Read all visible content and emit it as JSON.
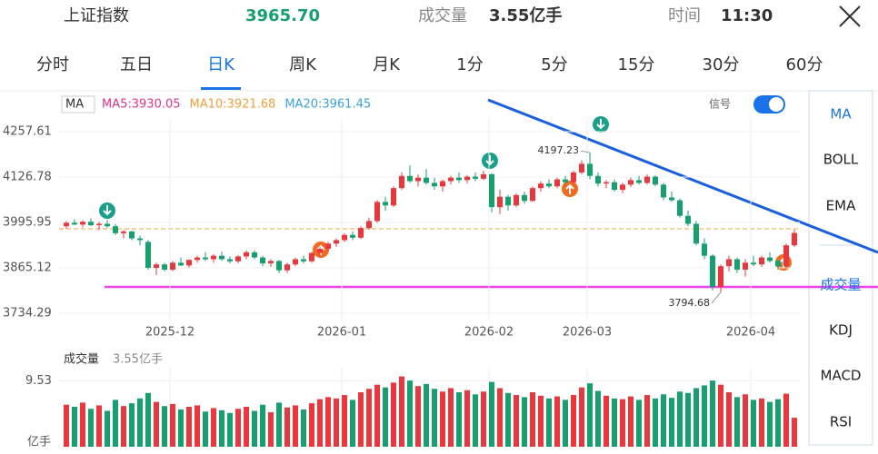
{
  "header": {
    "name": "上证指数",
    "price": "3965.70",
    "volume_label": "成交量",
    "volume": "3.55亿手",
    "time_label": "时间",
    "time": "11:30"
  },
  "tabs": [
    "分时",
    "五日",
    "日K",
    "周K",
    "月K",
    "1分",
    "5分",
    "15分",
    "30分",
    "60分"
  ],
  "active_tab": 2,
  "legend": {
    "label": "MA",
    "items": [
      {
        "text": "MA5:3930.05",
        "color": "#e0358f"
      },
      {
        "text": "MA10:3921.68",
        "color": "#f0a040"
      },
      {
        "text": "MA20:3961.45",
        "color": "#3aa0e0"
      }
    ],
    "signal": "信号"
  },
  "side_menu": {
    "items": [
      "MA",
      "BOLL",
      "EMA",
      "成交量",
      "KDJ",
      "MACD",
      "RSI"
    ],
    "active": [
      0,
      3
    ]
  },
  "volume_panel": {
    "title": "成交量",
    "value": "3.55亿手",
    "unit": "亿手"
  },
  "chart_data": {
    "type": "candlestick",
    "up_color": "#e8383d",
    "down_color": "#17a06e",
    "ylim": [
      3734.29,
      4257.61
    ],
    "yticks": [
      4257.61,
      4126.78,
      3995.95,
      3865.12,
      3734.29
    ],
    "xticks": [
      {
        "value": 13,
        "label": "2025-12"
      },
      {
        "value": 34,
        "label": "2026-01"
      },
      {
        "value": 52,
        "label": "2026-02"
      },
      {
        "value": 64,
        "label": "2026-03"
      },
      {
        "value": 84,
        "label": "2026-04"
      }
    ],
    "annotations": [
      {
        "text": "4197.23",
        "index": 64
      },
      {
        "text": "3794.68",
        "index": 80
      }
    ],
    "candles": [
      [
        3985,
        4000,
        3978,
        3995
      ],
      [
        3995,
        4005,
        3988,
        3990
      ],
      [
        3990,
        4002,
        3982,
        3998
      ],
      [
        3998,
        4008,
        3985,
        3988
      ],
      [
        3988,
        3998,
        3975,
        3992
      ],
      [
        3992,
        4003,
        3980,
        3985
      ],
      [
        3985,
        3992,
        3960,
        3965
      ],
      [
        3965,
        3975,
        3950,
        3970
      ],
      [
        3970,
        3972,
        3945,
        3950
      ],
      [
        3950,
        3958,
        3930,
        3945
      ],
      [
        3940,
        3945,
        3860,
        3865
      ],
      [
        3865,
        3880,
        3845,
        3875
      ],
      [
        3875,
        3880,
        3855,
        3860
      ],
      [
        3860,
        3885,
        3855,
        3880
      ],
      [
        3880,
        3895,
        3870,
        3872
      ],
      [
        3872,
        3890,
        3865,
        3888
      ],
      [
        3888,
        3900,
        3880,
        3895
      ],
      [
        3895,
        3910,
        3885,
        3890
      ],
      [
        3890,
        3905,
        3880,
        3900
      ],
      [
        3900,
        3912,
        3885,
        3890
      ],
      [
        3890,
        3898,
        3878,
        3884
      ],
      [
        3884,
        3902,
        3878,
        3898
      ],
      [
        3898,
        3915,
        3890,
        3910
      ],
      [
        3910,
        3915,
        3890,
        3895
      ],
      [
        3895,
        3900,
        3870,
        3878
      ],
      [
        3878,
        3890,
        3868,
        3885
      ],
      [
        3885,
        3888,
        3850,
        3858
      ],
      [
        3858,
        3880,
        3850,
        3875
      ],
      [
        3875,
        3895,
        3870,
        3890
      ],
      [
        3890,
        3900,
        3878,
        3884
      ],
      [
        3884,
        3912,
        3880,
        3908
      ],
      [
        3908,
        3925,
        3900,
        3920
      ],
      [
        3920,
        3940,
        3915,
        3935
      ],
      [
        3935,
        3950,
        3925,
        3945
      ],
      [
        3945,
        3965,
        3940,
        3960
      ],
      [
        3960,
        3970,
        3945,
        3952
      ],
      [
        3952,
        3985,
        3948,
        3980
      ],
      [
        3980,
        4010,
        3975,
        4000
      ],
      [
        4000,
        4060,
        3995,
        4055
      ],
      [
        4055,
        4070,
        4030,
        4045
      ],
      [
        4045,
        4100,
        4040,
        4095
      ],
      [
        4095,
        4140,
        4090,
        4130
      ],
      [
        4130,
        4160,
        4110,
        4115
      ],
      [
        4115,
        4135,
        4100,
        4125
      ],
      [
        4125,
        4150,
        4105,
        4110
      ],
      [
        4110,
        4125,
        4090,
        4100
      ],
      [
        4100,
        4120,
        4085,
        4115
      ],
      [
        4115,
        4130,
        4105,
        4125
      ],
      [
        4125,
        4140,
        4110,
        4118
      ],
      [
        4118,
        4132,
        4108,
        4128
      ],
      [
        4128,
        4140,
        4115,
        4122
      ],
      [
        4122,
        4145,
        4118,
        4135
      ],
      [
        4135,
        4138,
        4025,
        4040
      ],
      [
        4040,
        4090,
        4020,
        4070
      ],
      [
        4070,
        4075,
        4030,
        4045
      ],
      [
        4045,
        4080,
        4040,
        4075
      ],
      [
        4075,
        4085,
        4050,
        4058
      ],
      [
        4058,
        4100,
        4055,
        4095
      ],
      [
        4095,
        4115,
        4085,
        4108
      ],
      [
        4108,
        4120,
        4095,
        4100
      ],
      [
        4100,
        4125,
        4095,
        4120
      ],
      [
        4120,
        4130,
        4105,
        4112
      ],
      [
        4112,
        4145,
        4108,
        4140
      ],
      [
        4140,
        4175,
        4135,
        4165
      ],
      [
        4165,
        4197.23,
        4120,
        4130
      ],
      [
        4130,
        4140,
        4100,
        4108
      ],
      [
        4108,
        4118,
        4095,
        4112
      ],
      [
        4112,
        4120,
        4085,
        4090
      ],
      [
        4090,
        4110,
        4080,
        4105
      ],
      [
        4105,
        4125,
        4098,
        4118
      ],
      [
        4118,
        4130,
        4105,
        4110
      ],
      [
        4110,
        4135,
        4105,
        4128
      ],
      [
        4128,
        4132,
        4100,
        4105
      ],
      [
        4105,
        4110,
        4060,
        4068
      ],
      [
        4068,
        4085,
        4055,
        4060
      ],
      [
        4060,
        4065,
        4010,
        4015
      ],
      [
        4015,
        4030,
        3985,
        3992
      ],
      [
        3992,
        4000,
        3930,
        3935
      ],
      [
        3935,
        3950,
        3890,
        3900
      ],
      [
        3900,
        3905,
        3800,
        3810
      ],
      [
        3810,
        3875,
        3794.68,
        3870
      ],
      [
        3870,
        3900,
        3855,
        3890
      ],
      [
        3890,
        3895,
        3850,
        3860
      ],
      [
        3860,
        3890,
        3840,
        3880
      ],
      [
        3880,
        3900,
        3870,
        3875
      ],
      [
        3875,
        3900,
        3868,
        3895
      ],
      [
        3895,
        3910,
        3880,
        3885
      ],
      [
        3885,
        3890,
        3860,
        3870
      ],
      [
        3870,
        3935,
        3865,
        3930
      ],
      [
        3930,
        3975,
        3925,
        3965.7
      ]
    ],
    "vylim": [
      0,
      10.8
    ],
    "vyticks": [
      9.53
    ],
    "volumes": [
      6.1,
      5.8,
      6.4,
      5.5,
      6.0,
      5.2,
      6.8,
      5.9,
      6.3,
      7.0,
      7.8,
      6.5,
      5.9,
      6.2,
      5.4,
      5.8,
      6.0,
      5.1,
      5.6,
      5.3,
      4.9,
      5.5,
      5.8,
      5.2,
      6.1,
      5.0,
      6.4,
      5.7,
      6.0,
      5.4,
      6.3,
      6.9,
      7.2,
      7.0,
      7.5,
      6.8,
      7.9,
      8.4,
      9.0,
      8.6,
      9.3,
      10.2,
      9.6,
      8.8,
      9.1,
      8.4,
      8.0,
      8.5,
      7.9,
      8.2,
      7.6,
      8.0,
      9.4,
      8.5,
      7.8,
      7.5,
      7.2,
      7.9,
      7.4,
      7.0,
      7.3,
      6.8,
      7.5,
      8.6,
      9.2,
      8.1,
      7.4,
      7.0,
      6.9,
      7.3,
      6.8,
      7.5,
      7.0,
      7.6,
      7.1,
      8.0,
      7.8,
      8.5,
      8.9,
      9.6,
      9.0,
      7.9,
      7.2,
      7.6,
      6.8,
      7.0,
      6.5,
      6.9,
      7.7,
      4.2
    ]
  }
}
